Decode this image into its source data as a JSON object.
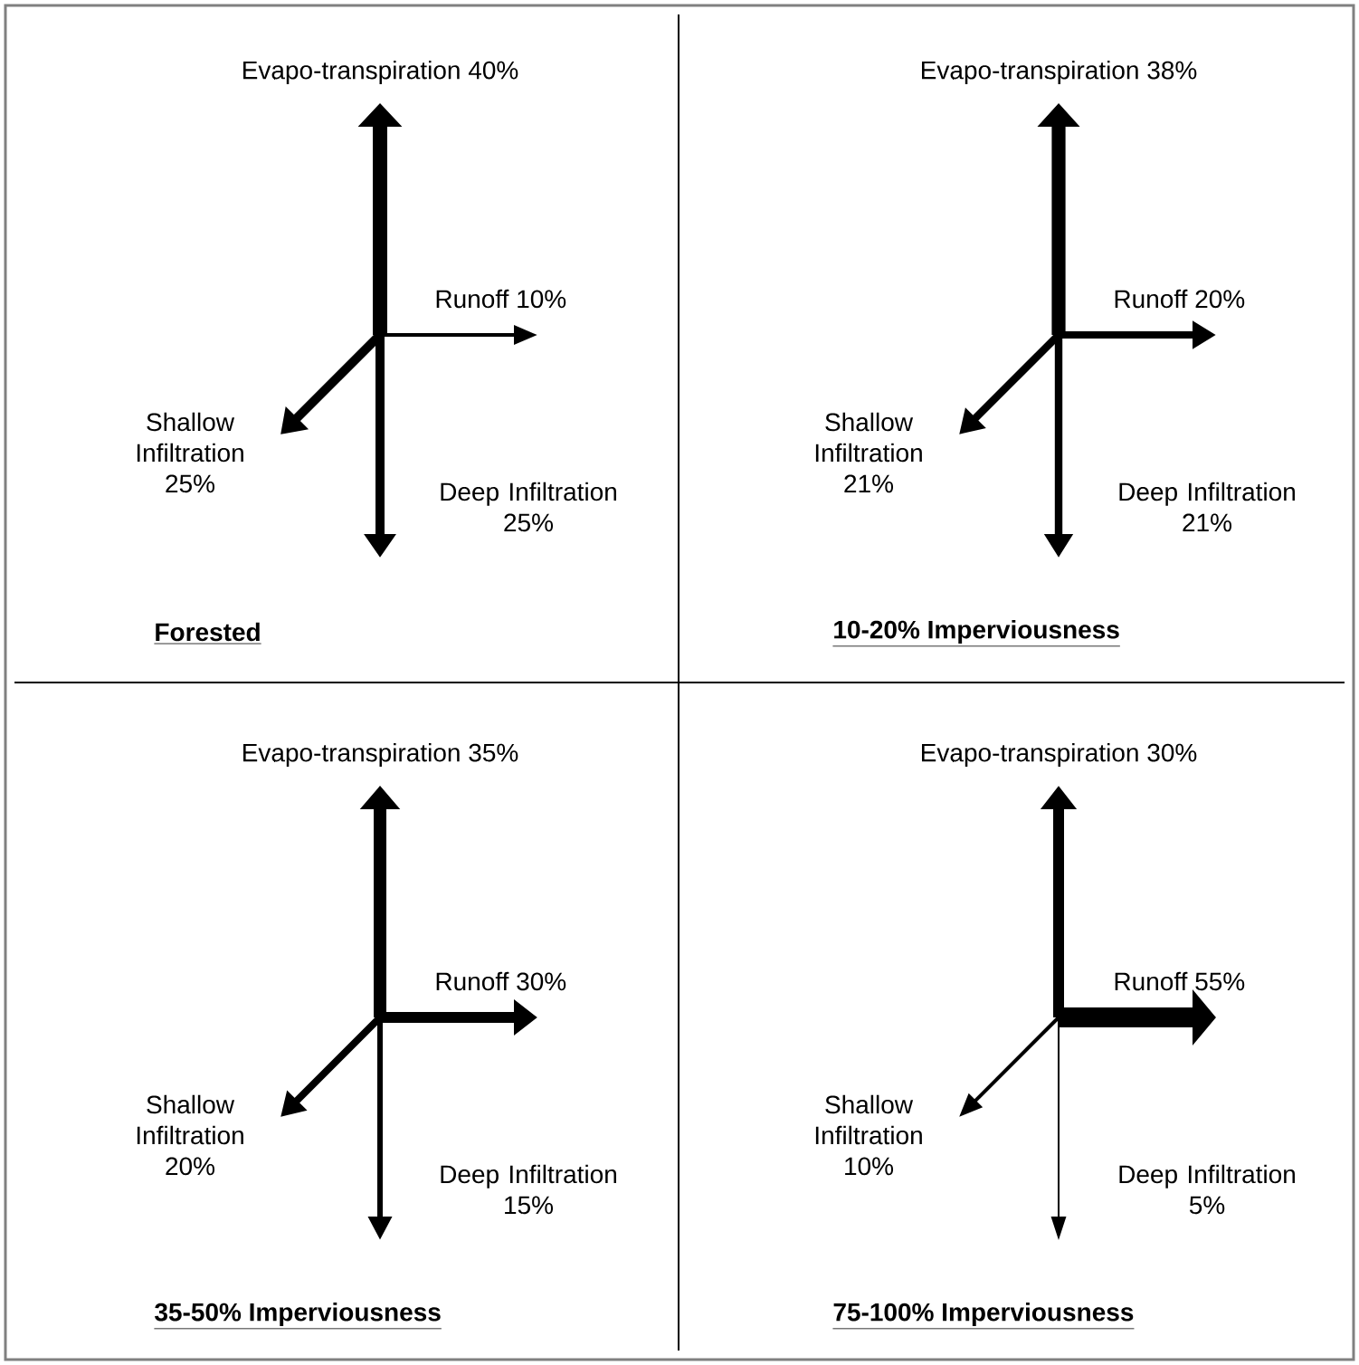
{
  "chart_data": [
    {
      "type": "other",
      "title": "Forested",
      "categories": [
        "Evapo-transpiration",
        "Runoff",
        "Shallow Infiltration",
        "Deep Infiltration"
      ],
      "values": [
        40,
        10,
        25,
        25
      ],
      "value_labels": [
        "40%",
        "10%",
        "25%",
        "25%"
      ]
    },
    {
      "type": "other",
      "title": "10-20% Imperviousness",
      "categories": [
        "Evapo-transpiration",
        "Runoff",
        "Shallow Infiltration",
        "Deep Infiltration"
      ],
      "values": [
        38,
        20,
        21,
        21
      ],
      "value_labels": [
        "38%",
        "20%",
        "21%",
        "21%"
      ]
    },
    {
      "type": "other",
      "title": "35-50% Imperviousness",
      "categories": [
        "Evapo-transpiration",
        "Runoff",
        "Shallow Infiltration",
        "Deep Infiltration"
      ],
      "values": [
        35,
        30,
        20,
        15
      ],
      "value_labels": [
        "35%",
        "30%",
        "20%",
        "15%"
      ]
    },
    {
      "type": "other",
      "title": "75-100% Imperviousness",
      "categories": [
        "Evapo-transpiration",
        "Runoff",
        "Shallow Infiltration",
        "Deep Infiltration"
      ],
      "values": [
        30,
        55,
        10,
        5
      ],
      "value_labels": [
        "30%",
        "55%",
        "10%",
        "5%"
      ]
    }
  ]
}
